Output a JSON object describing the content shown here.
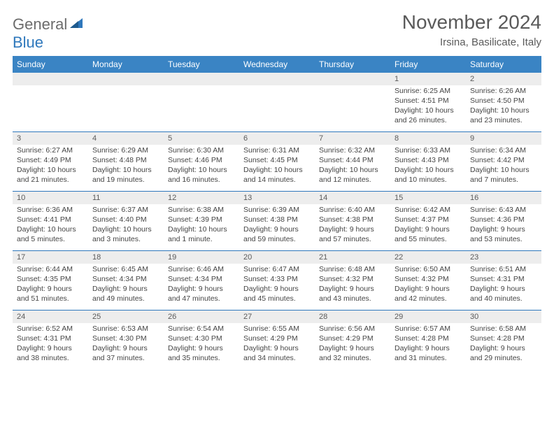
{
  "logo": {
    "text1": "General",
    "text2": "Blue"
  },
  "title": "November 2024",
  "subtitle": "Irsina, Basilicate, Italy",
  "colors": {
    "header_bg": "#3a84c4",
    "header_text": "#ffffff",
    "band_bg": "#ededed",
    "rule": "#2f78bc",
    "text": "#454545",
    "logo_gray": "#6c6c6c",
    "logo_blue": "#2f78bc"
  },
  "day_names": [
    "Sunday",
    "Monday",
    "Tuesday",
    "Wednesday",
    "Thursday",
    "Friday",
    "Saturday"
  ],
  "weeks": [
    [
      {
        "num": "",
        "sunrise": "",
        "sunset": "",
        "daylight": ""
      },
      {
        "num": "",
        "sunrise": "",
        "sunset": "",
        "daylight": ""
      },
      {
        "num": "",
        "sunrise": "",
        "sunset": "",
        "daylight": ""
      },
      {
        "num": "",
        "sunrise": "",
        "sunset": "",
        "daylight": ""
      },
      {
        "num": "",
        "sunrise": "",
        "sunset": "",
        "daylight": ""
      },
      {
        "num": "1",
        "sunrise": "Sunrise: 6:25 AM",
        "sunset": "Sunset: 4:51 PM",
        "daylight": "Daylight: 10 hours and 26 minutes."
      },
      {
        "num": "2",
        "sunrise": "Sunrise: 6:26 AM",
        "sunset": "Sunset: 4:50 PM",
        "daylight": "Daylight: 10 hours and 23 minutes."
      }
    ],
    [
      {
        "num": "3",
        "sunrise": "Sunrise: 6:27 AM",
        "sunset": "Sunset: 4:49 PM",
        "daylight": "Daylight: 10 hours and 21 minutes."
      },
      {
        "num": "4",
        "sunrise": "Sunrise: 6:29 AM",
        "sunset": "Sunset: 4:48 PM",
        "daylight": "Daylight: 10 hours and 19 minutes."
      },
      {
        "num": "5",
        "sunrise": "Sunrise: 6:30 AM",
        "sunset": "Sunset: 4:46 PM",
        "daylight": "Daylight: 10 hours and 16 minutes."
      },
      {
        "num": "6",
        "sunrise": "Sunrise: 6:31 AM",
        "sunset": "Sunset: 4:45 PM",
        "daylight": "Daylight: 10 hours and 14 minutes."
      },
      {
        "num": "7",
        "sunrise": "Sunrise: 6:32 AM",
        "sunset": "Sunset: 4:44 PM",
        "daylight": "Daylight: 10 hours and 12 minutes."
      },
      {
        "num": "8",
        "sunrise": "Sunrise: 6:33 AM",
        "sunset": "Sunset: 4:43 PM",
        "daylight": "Daylight: 10 hours and 10 minutes."
      },
      {
        "num": "9",
        "sunrise": "Sunrise: 6:34 AM",
        "sunset": "Sunset: 4:42 PM",
        "daylight": "Daylight: 10 hours and 7 minutes."
      }
    ],
    [
      {
        "num": "10",
        "sunrise": "Sunrise: 6:36 AM",
        "sunset": "Sunset: 4:41 PM",
        "daylight": "Daylight: 10 hours and 5 minutes."
      },
      {
        "num": "11",
        "sunrise": "Sunrise: 6:37 AM",
        "sunset": "Sunset: 4:40 PM",
        "daylight": "Daylight: 10 hours and 3 minutes."
      },
      {
        "num": "12",
        "sunrise": "Sunrise: 6:38 AM",
        "sunset": "Sunset: 4:39 PM",
        "daylight": "Daylight: 10 hours and 1 minute."
      },
      {
        "num": "13",
        "sunrise": "Sunrise: 6:39 AM",
        "sunset": "Sunset: 4:38 PM",
        "daylight": "Daylight: 9 hours and 59 minutes."
      },
      {
        "num": "14",
        "sunrise": "Sunrise: 6:40 AM",
        "sunset": "Sunset: 4:38 PM",
        "daylight": "Daylight: 9 hours and 57 minutes."
      },
      {
        "num": "15",
        "sunrise": "Sunrise: 6:42 AM",
        "sunset": "Sunset: 4:37 PM",
        "daylight": "Daylight: 9 hours and 55 minutes."
      },
      {
        "num": "16",
        "sunrise": "Sunrise: 6:43 AM",
        "sunset": "Sunset: 4:36 PM",
        "daylight": "Daylight: 9 hours and 53 minutes."
      }
    ],
    [
      {
        "num": "17",
        "sunrise": "Sunrise: 6:44 AM",
        "sunset": "Sunset: 4:35 PM",
        "daylight": "Daylight: 9 hours and 51 minutes."
      },
      {
        "num": "18",
        "sunrise": "Sunrise: 6:45 AM",
        "sunset": "Sunset: 4:34 PM",
        "daylight": "Daylight: 9 hours and 49 minutes."
      },
      {
        "num": "19",
        "sunrise": "Sunrise: 6:46 AM",
        "sunset": "Sunset: 4:34 PM",
        "daylight": "Daylight: 9 hours and 47 minutes."
      },
      {
        "num": "20",
        "sunrise": "Sunrise: 6:47 AM",
        "sunset": "Sunset: 4:33 PM",
        "daylight": "Daylight: 9 hours and 45 minutes."
      },
      {
        "num": "21",
        "sunrise": "Sunrise: 6:48 AM",
        "sunset": "Sunset: 4:32 PM",
        "daylight": "Daylight: 9 hours and 43 minutes."
      },
      {
        "num": "22",
        "sunrise": "Sunrise: 6:50 AM",
        "sunset": "Sunset: 4:32 PM",
        "daylight": "Daylight: 9 hours and 42 minutes."
      },
      {
        "num": "23",
        "sunrise": "Sunrise: 6:51 AM",
        "sunset": "Sunset: 4:31 PM",
        "daylight": "Daylight: 9 hours and 40 minutes."
      }
    ],
    [
      {
        "num": "24",
        "sunrise": "Sunrise: 6:52 AM",
        "sunset": "Sunset: 4:31 PM",
        "daylight": "Daylight: 9 hours and 38 minutes."
      },
      {
        "num": "25",
        "sunrise": "Sunrise: 6:53 AM",
        "sunset": "Sunset: 4:30 PM",
        "daylight": "Daylight: 9 hours and 37 minutes."
      },
      {
        "num": "26",
        "sunrise": "Sunrise: 6:54 AM",
        "sunset": "Sunset: 4:30 PM",
        "daylight": "Daylight: 9 hours and 35 minutes."
      },
      {
        "num": "27",
        "sunrise": "Sunrise: 6:55 AM",
        "sunset": "Sunset: 4:29 PM",
        "daylight": "Daylight: 9 hours and 34 minutes."
      },
      {
        "num": "28",
        "sunrise": "Sunrise: 6:56 AM",
        "sunset": "Sunset: 4:29 PM",
        "daylight": "Daylight: 9 hours and 32 minutes."
      },
      {
        "num": "29",
        "sunrise": "Sunrise: 6:57 AM",
        "sunset": "Sunset: 4:28 PM",
        "daylight": "Daylight: 9 hours and 31 minutes."
      },
      {
        "num": "30",
        "sunrise": "Sunrise: 6:58 AM",
        "sunset": "Sunset: 4:28 PM",
        "daylight": "Daylight: 9 hours and 29 minutes."
      }
    ]
  ]
}
